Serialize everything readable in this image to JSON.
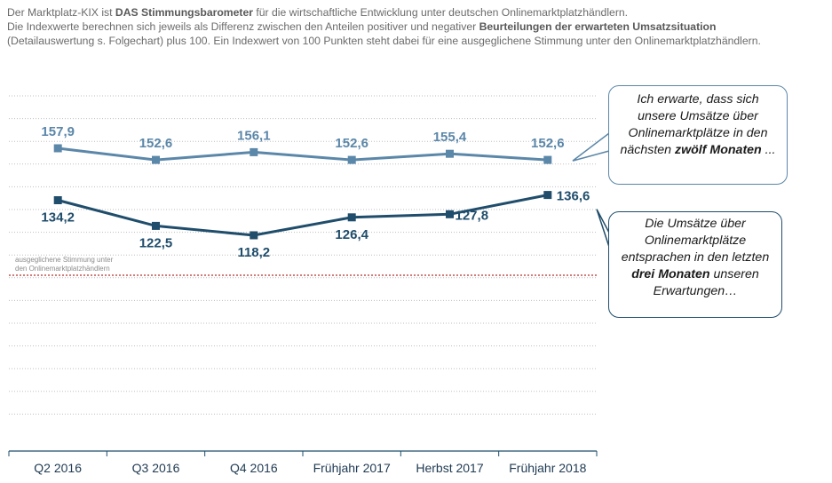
{
  "intro": {
    "line1_prefix": "Der Marktplatz-KIX ist ",
    "line1_bold": "DAS Stimmungsbarometer",
    "line1_suffix": " für die wirtschaftliche Entwicklung unter deutschen Onlinemarktplatzhändlern.",
    "line2_prefix": "Die Indexwerte berechnen sich jeweils als Differenz zwischen den Anteilen positiver und negativer ",
    "line2_bold": "Beurteilungen der erwarteten Umsatzsituation",
    "line3": "(Detailauswertung s. Folgechart) plus 100. Ein Indexwert von 100 Punkten steht dabei für eine ausgeglichene Stimmung unter den Onlinemarktplatzhändlern."
  },
  "chart_data": {
    "type": "line",
    "categories": [
      "Q2 2016",
      "Q3 2016",
      "Q4 2016",
      "Frühjahr 2017",
      "Herbst 2017",
      "Frühjahr 2018"
    ],
    "series": [
      {
        "values": [
          157.9,
          152.6,
          156.1,
          152.6,
          155.4,
          152.6
        ],
        "labels": [
          "157,9",
          "152,6",
          "156,1",
          "152,6",
          "155,4",
          "152,6"
        ],
        "color": "#5b87a9"
      },
      {
        "values": [
          134.2,
          122.5,
          118.2,
          126.4,
          127.8,
          136.6
        ],
        "labels": [
          "134,2",
          "122,5",
          "118,2",
          "126,4",
          "127,8",
          "136,6"
        ],
        "color": "#1f4d6b"
      }
    ],
    "reference": {
      "value": 100,
      "label_line1": "ausgeglichene Stimmung unter",
      "label_line2": "den Onlinemarktplatzhändlern",
      "color": "#c0504d"
    },
    "grid": true,
    "legend": "none"
  },
  "callouts": {
    "top": {
      "t1": "Ich erwarte, dass sich unsere Umsätze über Onlinemarktplätze in den nächsten ",
      "bold": "zwölf Monaten",
      "t2": " ..."
    },
    "bottom": {
      "t1": "Die Umsätze über Onlinemarktplätze entsprachen in den letzten ",
      "bold": "drei Monaten",
      "t2": " unseren Erwartungen…"
    }
  }
}
